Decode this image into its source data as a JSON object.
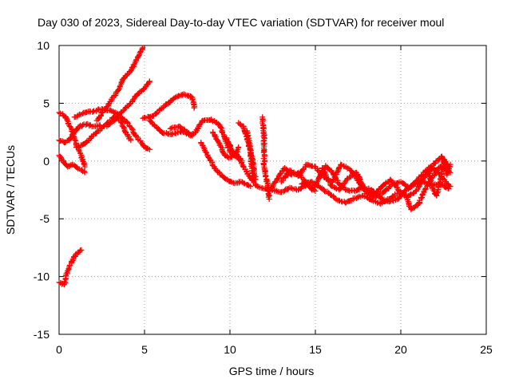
{
  "chart_data": {
    "type": "scatter",
    "title": "Day 030 of 2023, Sidereal Day-to-day VTEC variation (SDTVAR) for receiver moul",
    "xlabel": "GPS time / hours",
    "ylabel": "SDTVAR / TECUs",
    "xlim": [
      0,
      25
    ],
    "ylim": [
      -15,
      10
    ],
    "xticks": [
      "0",
      "5",
      "10",
      "15",
      "20",
      "25"
    ],
    "yticks": [
      "10",
      "5",
      "0",
      "-5",
      "-10",
      "-15"
    ],
    "grid": true,
    "marker": "+",
    "color": "#ff0000",
    "series": [
      {
        "name": "s1",
        "points": [
          [
            0,
            -10.5
          ],
          [
            0.3,
            -10.7
          ],
          [
            0.5,
            -9.5
          ],
          [
            0.8,
            -8.5
          ],
          [
            1.1,
            -7.9
          ],
          [
            1.3,
            -7.7
          ]
        ]
      },
      {
        "name": "s2",
        "points": [
          [
            0,
            4.2
          ],
          [
            0.4,
            3.8
          ],
          [
            0.8,
            2.5
          ],
          [
            1.0,
            1.5
          ],
          [
            1.3,
            0.5
          ],
          [
            1.5,
            -0.5
          ]
        ]
      },
      {
        "name": "s3",
        "points": [
          [
            0,
            1.8
          ],
          [
            0.3,
            1.6
          ],
          [
            0.6,
            1.8
          ],
          [
            0.9,
            2.5
          ],
          [
            1.2,
            3.0
          ],
          [
            1.6,
            3.2
          ],
          [
            2.0,
            3.0
          ],
          [
            2.4,
            3.1
          ]
        ]
      },
      {
        "name": "s4",
        "points": [
          [
            0,
            0.5
          ],
          [
            0.5,
            -0.5
          ],
          [
            0.8,
            -0.3
          ],
          [
            1.2,
            -0.7
          ],
          [
            1.5,
            -1.0
          ]
        ]
      },
      {
        "name": "s5",
        "points": [
          [
            0.9,
            3.8
          ],
          [
            1.5,
            4.2
          ],
          [
            2.0,
            4.3
          ],
          [
            2.5,
            4.5
          ],
          [
            3.0,
            4.4
          ],
          [
            3.5,
            4.0
          ],
          [
            4.0,
            3.3
          ],
          [
            4.5,
            2.2
          ],
          [
            5.0,
            1.2
          ],
          [
            5.3,
            1.0
          ]
        ]
      },
      {
        "name": "s6",
        "points": [
          [
            1.0,
            1.2
          ],
          [
            1.5,
            1.5
          ],
          [
            2.0,
            2.2
          ],
          [
            2.6,
            3.0
          ],
          [
            3.2,
            3.8
          ],
          [
            3.6,
            3.5
          ],
          [
            3.9,
            2.5
          ],
          [
            4.2,
            1.8
          ]
        ]
      },
      {
        "name": "s7",
        "points": [
          [
            2.2,
            3.5
          ],
          [
            2.8,
            4.7
          ],
          [
            3.4,
            6.0
          ],
          [
            3.8,
            7.2
          ],
          [
            4.2,
            7.8
          ],
          [
            4.6,
            9.0
          ],
          [
            4.9,
            9.8
          ]
        ]
      },
      {
        "name": "s8",
        "points": [
          [
            2.8,
            3.0
          ],
          [
            3.4,
            3.8
          ],
          [
            3.9,
            4.6
          ],
          [
            4.3,
            5.2
          ],
          [
            4.6,
            5.8
          ],
          [
            5.0,
            6.3
          ],
          [
            5.3,
            6.9
          ]
        ]
      },
      {
        "name": "s9",
        "points": [
          [
            4.9,
            3.7
          ],
          [
            5.5,
            3.9
          ],
          [
            6.2,
            4.8
          ],
          [
            6.8,
            5.5
          ],
          [
            7.3,
            5.8
          ],
          [
            7.8,
            5.5
          ],
          [
            7.9,
            4.6
          ]
        ]
      },
      {
        "name": "s10",
        "points": [
          [
            5.3,
            3.5
          ],
          [
            6.0,
            2.5
          ],
          [
            6.6,
            2.3
          ],
          [
            7.2,
            2.6
          ],
          [
            7.7,
            2.2
          ],
          [
            8.0,
            2.5
          ],
          [
            8.4,
            3.5
          ],
          [
            8.9,
            3.6
          ],
          [
            9.4,
            3.1
          ],
          [
            9.7,
            2.0
          ],
          [
            10.0,
            0.8
          ],
          [
            10.3,
            0.4
          ],
          [
            10.5,
            1.2
          ]
        ]
      },
      {
        "name": "s11",
        "points": [
          [
            6.5,
            2.8
          ],
          [
            7.0,
            3.0
          ],
          [
            7.5,
            2.5
          ],
          [
            7.8,
            2.2
          ]
        ]
      },
      {
        "name": "s12",
        "points": [
          [
            8.3,
            1.6
          ],
          [
            8.8,
            0.2
          ],
          [
            9.2,
            -0.8
          ],
          [
            9.7,
            -1.5
          ],
          [
            10.2,
            -1.9
          ],
          [
            10.7,
            -1.8
          ],
          [
            11.2,
            -2.2
          ]
        ]
      },
      {
        "name": "s13",
        "points": [
          [
            9.0,
            2.5
          ],
          [
            9.4,
            1.5
          ],
          [
            9.7,
            0.5
          ],
          [
            10.0,
            0.3
          ],
          [
            10.4,
            0.6
          ],
          [
            10.7,
            0.0
          ]
        ]
      },
      {
        "name": "s14",
        "points": [
          [
            9.8,
            2.0
          ],
          [
            10.1,
            1.0
          ],
          [
            10.4,
            0.5
          ],
          [
            10.8,
            -0.5
          ],
          [
            11.2,
            -1.5
          ],
          [
            11.6,
            -2.2
          ],
          [
            12.0,
            -2.4
          ],
          [
            12.5,
            -2.5
          ],
          [
            13.0,
            -2.7
          ],
          [
            13.5,
            -2.3
          ],
          [
            14.0,
            -2.5
          ],
          [
            14.5,
            -2.0
          ],
          [
            15.0,
            -2.6
          ]
        ]
      },
      {
        "name": "s15",
        "points": [
          [
            10.5,
            3.3
          ],
          [
            10.8,
            3.0
          ],
          [
            11.1,
            1.5
          ],
          [
            11.4,
            -0.5
          ],
          [
            11.5,
            -1.6
          ]
        ]
      },
      {
        "name": "s16",
        "points": [
          [
            11.0,
            2.6
          ],
          [
            11.2,
            1.0
          ],
          [
            11.3,
            -1.0
          ],
          [
            11.4,
            -1.4
          ]
        ]
      },
      {
        "name": "s17",
        "points": [
          [
            11.9,
            3.8
          ],
          [
            12.0,
            1.8
          ],
          [
            12.0,
            -0.5
          ],
          [
            12.1,
            -1.3
          ],
          [
            12.2,
            -2.0
          ],
          [
            12.3,
            -3.3
          ]
        ]
      },
      {
        "name": "s18",
        "points": [
          [
            12.3,
            -2.6
          ],
          [
            12.8,
            -1.5
          ],
          [
            13.2,
            -0.6
          ],
          [
            13.6,
            -1.2
          ],
          [
            14.0,
            -1.0
          ],
          [
            14.4,
            -1.8
          ],
          [
            14.8,
            -2.5
          ],
          [
            15.2,
            -1.5
          ],
          [
            15.6,
            -0.4
          ],
          [
            16.0,
            -1.0
          ],
          [
            16.4,
            -2.0
          ],
          [
            16.8,
            -2.5
          ],
          [
            17.3,
            -2.6
          ],
          [
            17.8,
            -2.3
          ],
          [
            18.3,
            -2.5
          ],
          [
            18.8,
            -3.2
          ],
          [
            19.3,
            -3.5
          ],
          [
            19.8,
            -3.3
          ],
          [
            20.3,
            -2.5
          ],
          [
            20.8,
            -2.0
          ],
          [
            21.3,
            -1.8
          ],
          [
            21.8,
            -2.1
          ],
          [
            22.3,
            -2.0
          ],
          [
            22.8,
            -2.4
          ]
        ]
      },
      {
        "name": "s19",
        "points": [
          [
            13.0,
            -1.8
          ],
          [
            13.5,
            -0.8
          ],
          [
            14.0,
            -1.3
          ],
          [
            14.5,
            -0.3
          ],
          [
            15.0,
            -0.5
          ],
          [
            15.5,
            -1.4
          ],
          [
            16.0,
            -1.8
          ],
          [
            16.5,
            -0.3
          ],
          [
            17.0,
            -0.7
          ],
          [
            17.5,
            -1.7
          ],
          [
            18.0,
            -2.8
          ],
          [
            18.5,
            -3.1
          ],
          [
            19.0,
            -2.7
          ],
          [
            19.5,
            -2.0
          ],
          [
            20.0,
            -1.8
          ],
          [
            20.5,
            -2.3
          ],
          [
            21.0,
            -1.6
          ],
          [
            21.5,
            -0.8
          ],
          [
            22.0,
            -0.2
          ],
          [
            22.4,
            0.4
          ],
          [
            22.8,
            -0.5
          ]
        ]
      },
      {
        "name": "s20",
        "points": [
          [
            14.2,
            -2.0
          ],
          [
            14.8,
            -1.8
          ],
          [
            15.3,
            -2.3
          ],
          [
            15.8,
            -2.8
          ],
          [
            16.3,
            -3.4
          ],
          [
            16.8,
            -3.6
          ],
          [
            17.3,
            -3.2
          ],
          [
            17.8,
            -3.0
          ],
          [
            18.3,
            -3.4
          ],
          [
            18.8,
            -3.7
          ],
          [
            19.3,
            -3.3
          ],
          [
            19.8,
            -2.8
          ],
          [
            20.3,
            -3.0
          ],
          [
            20.6,
            -4.2
          ],
          [
            21.0,
            -3.8
          ],
          [
            21.4,
            -2.5
          ],
          [
            21.8,
            -1.5
          ],
          [
            22.3,
            -0.5
          ],
          [
            22.9,
            -1.0
          ]
        ]
      },
      {
        "name": "s21",
        "points": [
          [
            15.4,
            -0.6
          ],
          [
            15.9,
            -2.1
          ],
          [
            16.4,
            -2.5
          ],
          [
            16.9,
            -1.5
          ],
          [
            17.4,
            -1.0
          ],
          [
            17.9,
            -2.4
          ],
          [
            18.4,
            -3.0
          ],
          [
            18.9,
            -2.2
          ],
          [
            19.4,
            -1.6
          ],
          [
            19.9,
            -2.6
          ],
          [
            20.4,
            -3.1
          ],
          [
            20.9,
            -2.6
          ],
          [
            21.4,
            -1.3
          ],
          [
            21.9,
            -0.6
          ],
          [
            22.4,
            -1.4
          ],
          [
            22.9,
            -2.2
          ]
        ]
      },
      {
        "name": "s22",
        "points": [
          [
            21.6,
            -1.0
          ],
          [
            21.9,
            -2.5
          ],
          [
            22.1,
            -3.0
          ],
          [
            22.3,
            -1.8
          ],
          [
            22.5,
            0.0
          ],
          [
            22.7,
            -1.2
          ],
          [
            22.9,
            -0.3
          ]
        ]
      }
    ]
  }
}
